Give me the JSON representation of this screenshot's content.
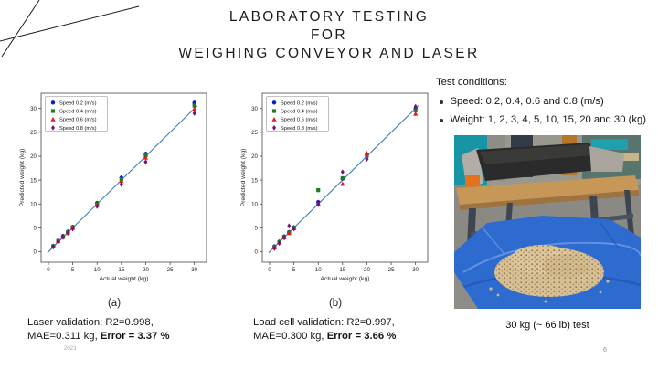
{
  "slide": {
    "title_lines": [
      "LABORATORY TESTING",
      "FOR",
      "WEIGHING CONVEYOR AND LASER"
    ],
    "footer_year": "2023",
    "page_number": "6"
  },
  "test_conditions": {
    "heading": "Test conditions:",
    "bullets": [
      "Speed: 0.2, 0.4, 0.6 and 0.8 (m/s)",
      "Weight: 1, 2, 3, 4, 5, 10, 15, 20 and 30 (kg)"
    ]
  },
  "captions": {
    "a_label": "(a)",
    "a_line1": "Laser validation: R2=0.998,",
    "a_line2_prefix": "MAE=0.311 kg, ",
    "a_line2_bold": "Error = 3.37 %",
    "b_label": "(b)",
    "b_line1": "Load cell validation: R2=0.997,",
    "b_line2_prefix": "MAE=0.300 kg, ",
    "b_line2_bold": "Error = 3.66 %"
  },
  "photo_caption": "30 kg (~ 66 lb) test",
  "colors": {
    "fit_line": "#3c7fb8",
    "speed_02": "#1414c8",
    "speed_04": "#1e7d1e",
    "speed_06": "#e01b1b",
    "speed_08": "#7c0f7c",
    "tarp_blue": "#2d6bcf",
    "pellet_tan": "#d6c096"
  },
  "chart_data": [
    {
      "type": "scatter",
      "title": "Laser validation",
      "xlabel": "Actual weight (kg)",
      "ylabel": "Predicted weight (kg)",
      "xlim": [
        -1.5,
        32.5
      ],
      "ylim": [
        -2.2,
        33.2
      ],
      "xticks": [
        0,
        5,
        10,
        15,
        20,
        25,
        30
      ],
      "yticks": [
        0,
        5,
        10,
        15,
        20,
        25,
        30
      ],
      "x": [
        1,
        2,
        3,
        4,
        5,
        10,
        15,
        20,
        30
      ],
      "fit_line": {
        "x": [
          -0.2,
          30.6
        ],
        "y": [
          -0.2,
          30.6
        ]
      },
      "legend_position": "upper-left",
      "grid": false,
      "series": [
        {
          "name": "Speed 0.2 (m/s)",
          "marker": "circle",
          "color": "#1414c8",
          "values": [
            1.2,
            2.3,
            3.3,
            4.2,
            5.2,
            10.2,
            15.5,
            20.5,
            31.2
          ]
        },
        {
          "name": "Speed 0.4 (m/s)",
          "marker": "square",
          "color": "#1e7d1e",
          "values": [
            1.15,
            2.25,
            3.2,
            4.1,
            5.1,
            10.0,
            15.2,
            20.2,
            30.6
          ]
        },
        {
          "name": "Speed 0.6 (m/s)",
          "marker": "triangle",
          "color": "#e01b1b",
          "values": [
            1.1,
            2.2,
            3.1,
            4.0,
            5.0,
            9.8,
            14.8,
            19.7,
            29.9
          ]
        },
        {
          "name": "Speed 0.8 (m/s)",
          "marker": "diamond",
          "color": "#7c0f7c",
          "values": [
            1.0,
            2.1,
            3.0,
            3.9,
            4.8,
            9.5,
            14.1,
            18.8,
            29.0
          ]
        }
      ]
    },
    {
      "type": "scatter",
      "title": "Load cell validation",
      "xlabel": "Actual weight (kg)",
      "ylabel": "Predicted weight (kg)",
      "xlim": [
        -1.5,
        32.5
      ],
      "ylim": [
        -2.2,
        33.2
      ],
      "xticks": [
        0,
        5,
        10,
        15,
        20,
        25,
        30
      ],
      "yticks": [
        0,
        5,
        10,
        15,
        20,
        25,
        30
      ],
      "x": [
        1,
        2,
        3,
        4,
        5,
        10,
        15,
        20,
        30
      ],
      "fit_line": {
        "x": [
          -0.2,
          30.6
        ],
        "y": [
          -0.2,
          30.6
        ]
      },
      "legend_position": "upper-left",
      "grid": false,
      "series": [
        {
          "name": "Speed 0.2 (m/s)",
          "marker": "circle",
          "color": "#1414c8",
          "values": [
            1.1,
            2.1,
            3.2,
            4.1,
            5.1,
            10.4,
            15.3,
            20.3,
            30.0
          ]
        },
        {
          "name": "Speed 0.4 (m/s)",
          "marker": "square",
          "color": "#1e7d1e",
          "values": [
            1.0,
            2.0,
            3.1,
            4.0,
            5.0,
            12.9,
            15.4,
            20.1,
            29.6
          ]
        },
        {
          "name": "Speed 0.6 (m/s)",
          "marker": "triangle",
          "color": "#e01b1b",
          "values": [
            0.9,
            1.9,
            3.0,
            3.9,
            4.9,
            10.1,
            14.2,
            20.6,
            28.9
          ]
        },
        {
          "name": "Speed 0.8 (m/s)",
          "marker": "diamond",
          "color": "#7c0f7c",
          "values": [
            0.7,
            1.8,
            2.9,
            5.4,
            4.8,
            9.9,
            16.7,
            19.4,
            30.4
          ]
        }
      ]
    }
  ]
}
